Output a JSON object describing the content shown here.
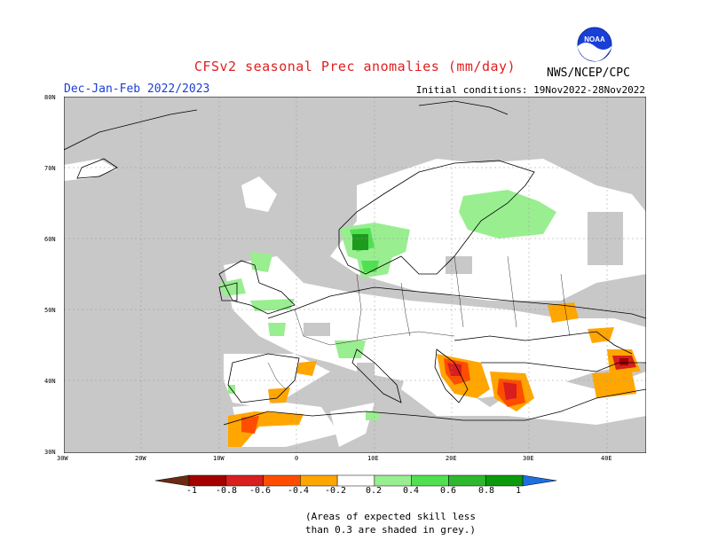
{
  "title": "CFSv2 seasonal Prec anomalies (mm/day)",
  "season": "Dec-Jan-Feb 2022/2023",
  "initial_conditions": "Initial conditions: 19Nov2022-28Nov2022",
  "agency": "NWS/NCEP/CPC",
  "logo_text": "NOAA",
  "lat_labels": [
    "80N",
    "70N",
    "60N",
    "50N",
    "40N",
    "30N"
  ],
  "lon_labels": [
    "30W",
    "20W",
    "10W",
    "0",
    "10E",
    "20E",
    "30E",
    "40E"
  ],
  "colorbar": {
    "labels": [
      "-1",
      "-0.8",
      "-0.6",
      "-0.4",
      "-0.2",
      "0.2",
      "0.4",
      "0.6",
      "0.8",
      "1"
    ],
    "colors": [
      "#6b2a12",
      "#a30000",
      "#d81e1e",
      "#ff4d00",
      "#ffa600",
      "#ffffff",
      "#99ee90",
      "#50e050",
      "#2eb82e",
      "#0a9a0a",
      "#1e6fe0"
    ]
  },
  "skill_note_line1": "(Areas of expected skill less",
  "skill_note_line2": "than 0.3 are shaded in grey.)",
  "map_colors": {
    "grey": "#c8c8c8",
    "light_green": "#99ee90",
    "green": "#50e050",
    "dark_green": "#1e9a1e",
    "orange": "#ffa600",
    "red_orange": "#ff4d00",
    "red": "#d81e1e",
    "dark_red": "#a30000"
  }
}
